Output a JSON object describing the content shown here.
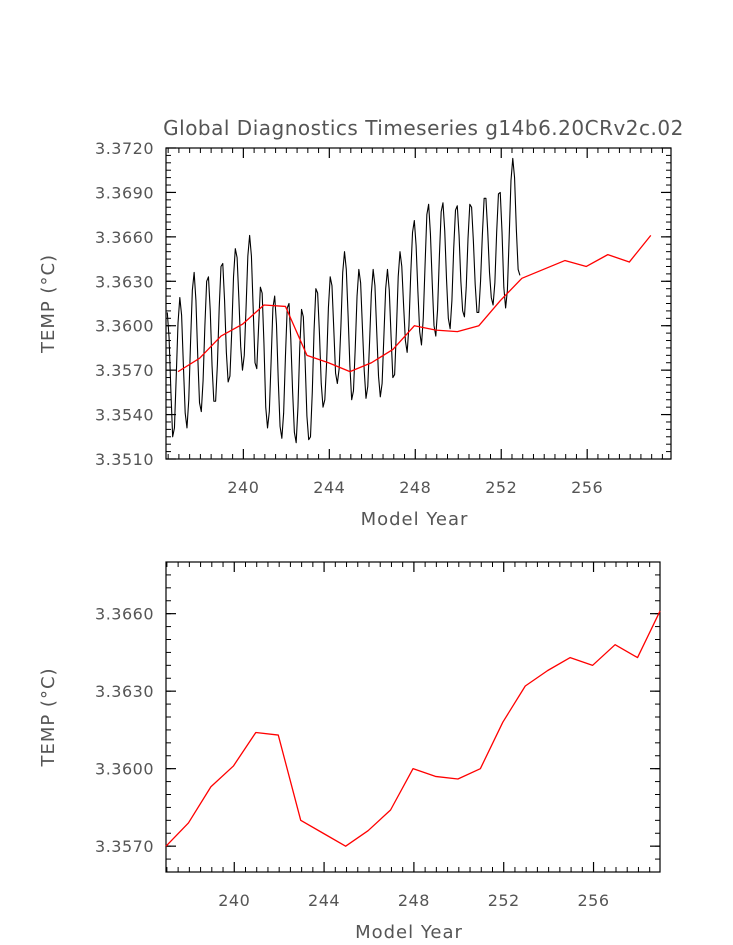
{
  "chart_data": [
    {
      "type": "line",
      "title": "Global Diagnostics Timeseries g14b6.20CRv2c.02",
      "xlabel": "Model Year",
      "ylabel": "TEMP (°C)",
      "xlim": [
        236.4,
        259.9
      ],
      "ylim": [
        3.351,
        3.372
      ],
      "xticks": [
        240,
        244,
        248,
        252,
        256
      ],
      "xtick_labels": [
        "240",
        "244",
        "248",
        "252",
        "256"
      ],
      "yticks": [
        3.351,
        3.354,
        3.357,
        3.36,
        3.363,
        3.366,
        3.369,
        3.372
      ],
      "ytick_labels": [
        "3.3510",
        "3.3540",
        "3.3570",
        "3.3600",
        "3.3630",
        "3.3660",
        "3.3690",
        "3.3720"
      ],
      "grid": false,
      "series": [
        {
          "kind": "monthly",
          "color": "#000000",
          "x_start": 236.46,
          "x_step": 0.0833,
          "values": [
            3.3609,
            3.3592,
            3.3556,
            3.3525,
            3.3531,
            3.3566,
            3.3602,
            3.3619,
            3.3607,
            3.3573,
            3.3541,
            3.3531,
            3.355,
            3.3589,
            3.3624,
            3.3636,
            3.3617,
            3.358,
            3.3548,
            3.3542,
            3.3563,
            3.36,
            3.363,
            3.3633,
            3.361,
            3.3573,
            3.3549,
            3.3549,
            3.3574,
            3.3612,
            3.364,
            3.3642,
            3.3617,
            3.3582,
            3.3562,
            3.3566,
            3.3596,
            3.3633,
            3.3652,
            3.3646,
            3.3618,
            3.3586,
            3.357,
            3.358,
            3.3612,
            3.3647,
            3.3661,
            3.3647,
            3.3611,
            3.3575,
            3.3571,
            3.3599,
            3.3626,
            3.3622,
            3.3588,
            3.3545,
            3.3531,
            3.3542,
            3.3576,
            3.3612,
            3.362,
            3.3601,
            3.3563,
            3.3532,
            3.3524,
            3.3541,
            3.3579,
            3.3612,
            3.3615,
            3.3591,
            3.3556,
            3.3528,
            3.3521,
            3.3545,
            3.3585,
            3.3611,
            3.3606,
            3.3576,
            3.3539,
            3.3523,
            3.3525,
            3.3555,
            3.3597,
            3.3625,
            3.3622,
            3.3595,
            3.3561,
            3.3545,
            3.355,
            3.3575,
            3.3612,
            3.3633,
            3.3627,
            3.3598,
            3.3568,
            3.3561,
            3.3571,
            3.36,
            3.3636,
            3.365,
            3.3638,
            3.3607,
            3.3573,
            3.355,
            3.3556,
            3.3585,
            3.362,
            3.3638,
            3.3629,
            3.3599,
            3.357,
            3.3551,
            3.3559,
            3.3589,
            3.3622,
            3.3638,
            3.3627,
            3.3596,
            3.3566,
            3.3552,
            3.3561,
            3.3593,
            3.3625,
            3.3638,
            3.3624,
            3.3593,
            3.3565,
            3.3567,
            3.3597,
            3.3633,
            3.365,
            3.364,
            3.3614,
            3.359,
            3.3582,
            3.36,
            3.3635,
            3.3663,
            3.3671,
            3.3654,
            3.3623,
            3.3596,
            3.3587,
            3.3605,
            3.3641,
            3.3675,
            3.3682,
            3.3662,
            3.3629,
            3.36,
            3.3593,
            3.3611,
            3.3647,
            3.3677,
            3.3683,
            3.3664,
            3.3631,
            3.3605,
            3.3598,
            3.3617,
            3.3652,
            3.3678,
            3.3681,
            3.3661,
            3.363,
            3.361,
            3.3606,
            3.3626,
            3.3659,
            3.3682,
            3.368,
            3.3657,
            3.3628,
            3.3609,
            3.3609,
            3.363,
            3.3661,
            3.3686,
            3.3686,
            3.3664,
            3.3636,
            3.3619,
            3.3614,
            3.3629,
            3.3663,
            3.3689,
            3.369,
            3.3663,
            3.3626,
            3.3612,
            3.3624,
            3.366,
            3.3698,
            3.3713,
            3.37,
            3.3665,
            3.3638,
            3.3634
          ]
        },
        {
          "kind": "annual-mean",
          "color": "#ff0000",
          "x": [
            236.96,
            237.96,
            238.96,
            239.96,
            240.96,
            241.96,
            242.96,
            243.96,
            244.96,
            245.96,
            246.96,
            247.96,
            248.96,
            249.96,
            250.96,
            251.96,
            252.96,
            253.96,
            254.96,
            255.96,
            256.96,
            257.96,
            258.96
          ],
          "values": [
            3.3569,
            3.3578,
            3.3593,
            3.3601,
            3.3614,
            3.3613,
            3.358,
            3.3575,
            3.3569,
            3.3575,
            3.3584,
            3.36,
            3.3597,
            3.3596,
            3.36,
            3.3617,
            3.3632,
            3.3638,
            3.3644,
            3.364,
            3.3648,
            3.3643,
            3.3661
          ]
        }
      ]
    },
    {
      "type": "line",
      "title": "",
      "xlabel": "Model Year",
      "ylabel": "TEMP (°C)",
      "xlim": [
        236.96,
        258.96
      ],
      "ylim": [
        3.356,
        3.368
      ],
      "xticks": [
        240,
        244,
        248,
        252,
        256
      ],
      "xtick_labels": [
        "240",
        "244",
        "248",
        "252",
        "256"
      ],
      "yticks": [
        3.357,
        3.36,
        3.363,
        3.366
      ],
      "ytick_labels": [
        "3.3570",
        "3.3600",
        "3.3630",
        "3.3660"
      ],
      "grid": false,
      "series": [
        {
          "kind": "annual-mean",
          "color": "#ff0000",
          "x": [
            236.96,
            237.96,
            238.96,
            239.96,
            240.96,
            241.96,
            242.96,
            243.96,
            244.96,
            245.96,
            246.96,
            247.96,
            248.96,
            249.96,
            250.96,
            251.96,
            252.96,
            253.96,
            254.96,
            255.96,
            256.96,
            257.96,
            258.96
          ],
          "values": [
            3.357,
            3.3579,
            3.3593,
            3.3601,
            3.3614,
            3.3613,
            3.358,
            3.3575,
            3.357,
            3.3576,
            3.3584,
            3.36,
            3.3597,
            3.3596,
            3.36,
            3.3618,
            3.3632,
            3.3638,
            3.3643,
            3.364,
            3.3648,
            3.3643,
            3.3661
          ]
        }
      ]
    }
  ]
}
